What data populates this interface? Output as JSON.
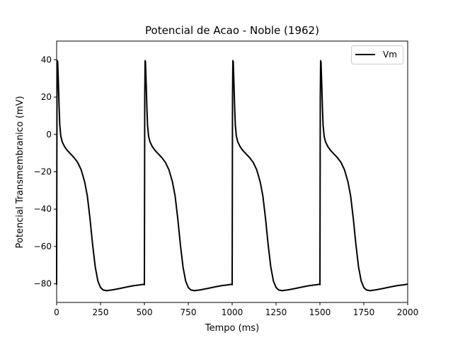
{
  "chart_data": {
    "type": "line",
    "title": "Potencial de Acao - Noble (1962)",
    "xlabel": "Tempo (ms)",
    "ylabel": "Potencial Transmembranico (mV)",
    "xlim": [
      0,
      2000
    ],
    "ylim": [
      -90,
      50
    ],
    "xticks": [
      0,
      250,
      500,
      750,
      1000,
      1250,
      1500,
      1750,
      2000
    ],
    "yticks": [
      -80,
      -60,
      -40,
      -20,
      0,
      20,
      40
    ],
    "grid": false,
    "legend": {
      "position": "top-right",
      "entries": [
        "Vm"
      ]
    },
    "series": [
      {
        "name": "Vm",
        "color": "#000000",
        "shape_points": [
          [
            0,
            -80.5
          ],
          [
            2,
            20
          ],
          [
            4,
            39.5
          ],
          [
            6,
            39
          ],
          [
            10,
            28
          ],
          [
            14,
            15
          ],
          [
            18,
            5
          ],
          [
            24,
            -1
          ],
          [
            32,
            -4
          ],
          [
            45,
            -6.5
          ],
          [
            60,
            -8.5
          ],
          [
            80,
            -10.5
          ],
          [
            100,
            -12.5
          ],
          [
            120,
            -15
          ],
          [
            140,
            -19
          ],
          [
            160,
            -25.5
          ],
          [
            175,
            -33
          ],
          [
            190,
            -45
          ],
          [
            205,
            -59
          ],
          [
            220,
            -71
          ],
          [
            235,
            -78.5
          ],
          [
            250,
            -82
          ],
          [
            265,
            -83.3
          ],
          [
            285,
            -83.7
          ],
          [
            320,
            -83.2
          ],
          [
            360,
            -82.5
          ],
          [
            400,
            -81.7
          ],
          [
            440,
            -81.0
          ],
          [
            480,
            -80.5
          ],
          [
            500,
            -80.2
          ]
        ],
        "period": 500,
        "cycles": 4
      }
    ]
  }
}
